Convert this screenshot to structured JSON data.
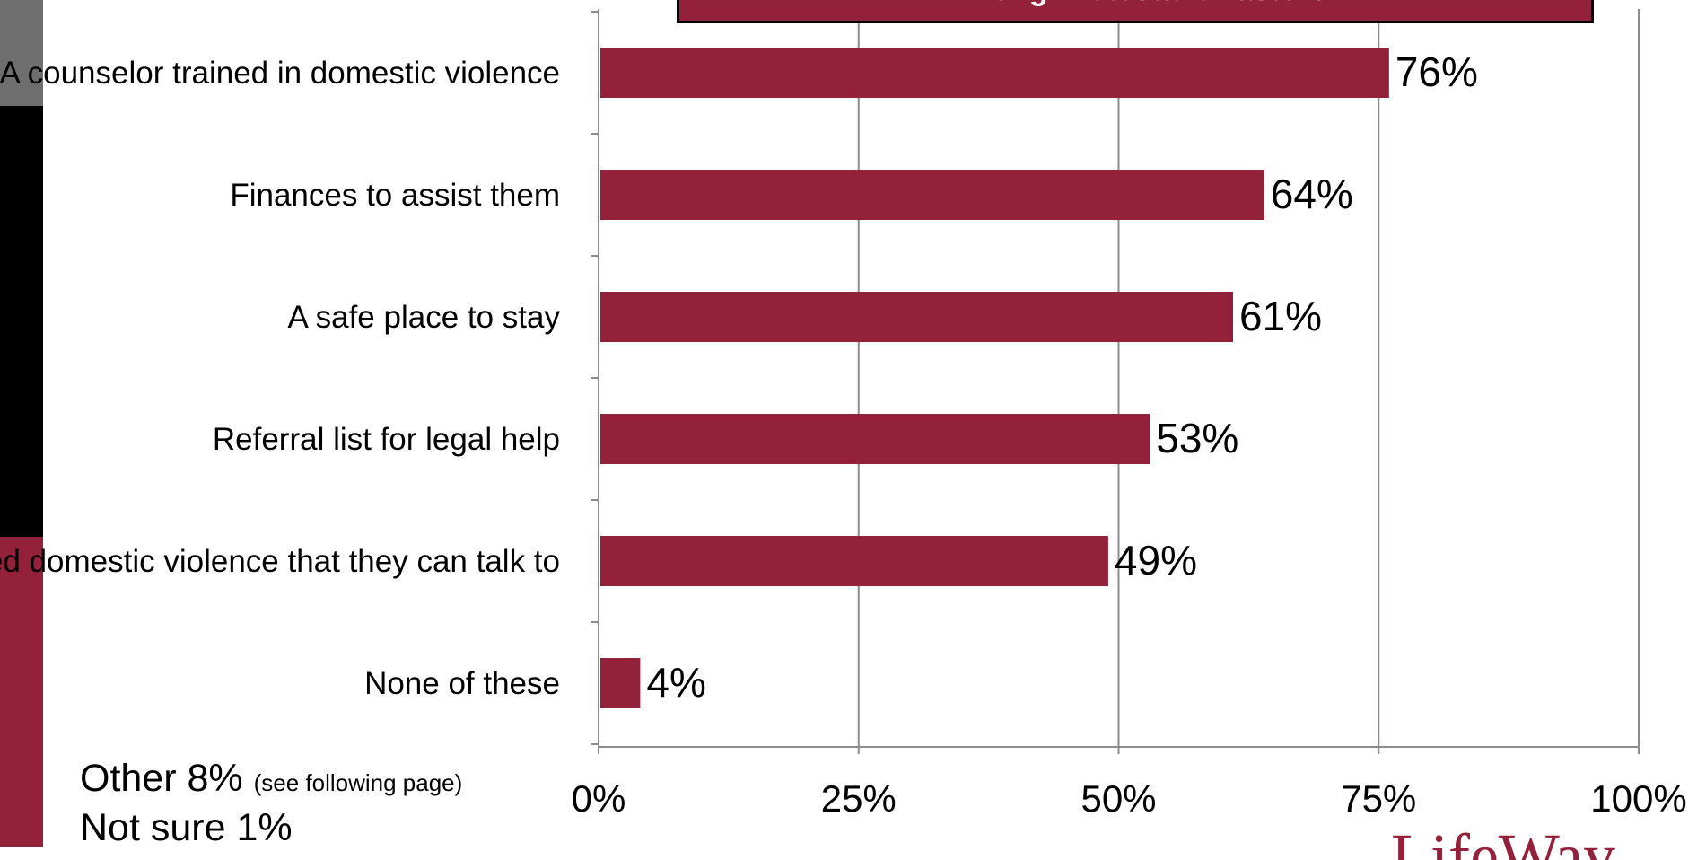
{
  "colors": {
    "bar": "#93213a",
    "axis": "#8c8c8c",
    "grid": "#8c8c8c",
    "text": "#000000"
  },
  "chart_data": {
    "type": "bar",
    "orientation": "horizontal",
    "title": "Among Protestant Pastors",
    "categories": [
      "A counselor trained in domestic violence",
      "Finances to assist them",
      "A safe place to stay",
      "Referral list for legal help",
      "Someone who has experienced domestic violence that they can talk to",
      "None of these"
    ],
    "values": [
      76,
      64,
      61,
      53,
      49,
      4
    ],
    "data_labels": [
      "76%",
      "64%",
      "61%",
      "53%",
      "49%",
      "4%"
    ],
    "xlim": [
      0,
      100
    ],
    "xticks": [
      0,
      25,
      50,
      75,
      100
    ],
    "xtick_labels": [
      "0%",
      "25%",
      "50%",
      "75%",
      "100%"
    ],
    "grid": "vertical",
    "legend": "none"
  },
  "notes": {
    "other_label": "Other 8%",
    "other_note": "(see following page)",
    "not_sure_label": "Not sure 1%"
  },
  "logo": {
    "text": "LifeWay",
    "icon": "lifeway-logo-icon"
  }
}
